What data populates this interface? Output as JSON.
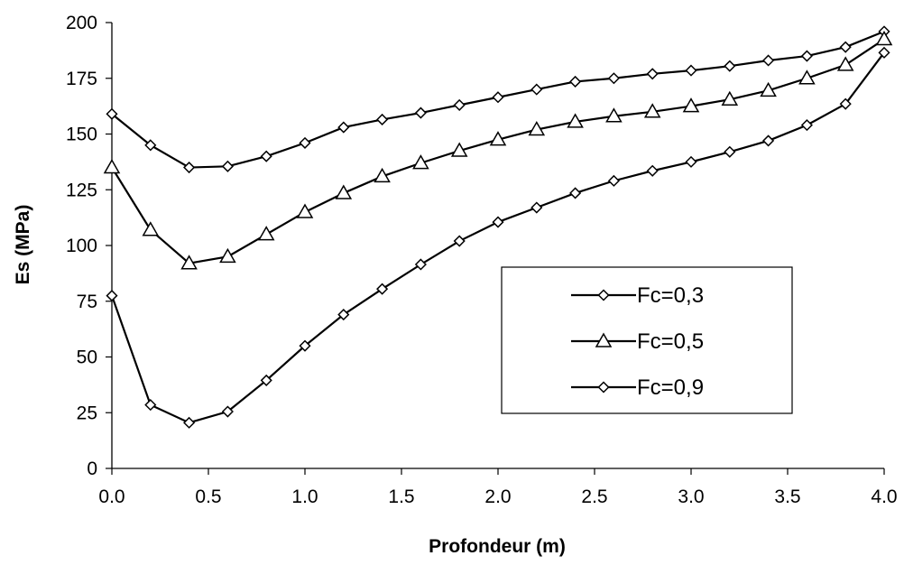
{
  "chart_data": {
    "type": "line",
    "title": "",
    "xlabel": "Profondeur (m)",
    "ylabel": "Es (MPa)",
    "xlim": [
      0,
      4
    ],
    "ylim": [
      0,
      200
    ],
    "xticks": [
      "0.0",
      "0.5",
      "1.0",
      "1.5",
      "2.0",
      "2.5",
      "3.0",
      "3.5",
      "4.0"
    ],
    "yticks": [
      "0",
      "25",
      "50",
      "75",
      "100",
      "125",
      "150",
      "175",
      "200"
    ],
    "grid": false,
    "legend_position": "center-right",
    "x": [
      0.0,
      0.2,
      0.4,
      0.6,
      0.8,
      1.0,
      1.2,
      1.4,
      1.6,
      1.8,
      2.0,
      2.2,
      2.4,
      2.6,
      2.8,
      3.0,
      3.2,
      3.4,
      3.6,
      3.8,
      4.0
    ],
    "series": [
      {
        "name": "Fc=0,3",
        "marker": "diamond",
        "values": [
          159,
          145,
          135,
          135.5,
          140,
          146,
          153,
          156.5,
          159.5,
          163,
          166.5,
          170,
          173.5,
          175,
          177,
          178.5,
          180.5,
          183,
          185,
          189,
          196
        ]
      },
      {
        "name": "Fc=0,5",
        "marker": "triangle",
        "values": [
          135,
          107,
          92,
          95,
          105,
          115,
          123.5,
          131,
          137,
          142.5,
          147.5,
          152,
          155.5,
          158,
          160,
          162.5,
          165.5,
          169.5,
          175,
          181,
          192.5
        ]
      },
      {
        "name": "Fc=0,9",
        "marker": "diamond",
        "values": [
          77.5,
          28.5,
          20.5,
          25.5,
          39.5,
          55,
          69,
          80.5,
          91.5,
          102,
          110.5,
          117,
          123.5,
          129,
          133.5,
          137.5,
          142,
          147,
          154,
          163.5,
          186.5
        ]
      }
    ]
  },
  "colors": {
    "line": "#000000",
    "background": "#ffffff",
    "marker_fill": "#ffffff"
  }
}
